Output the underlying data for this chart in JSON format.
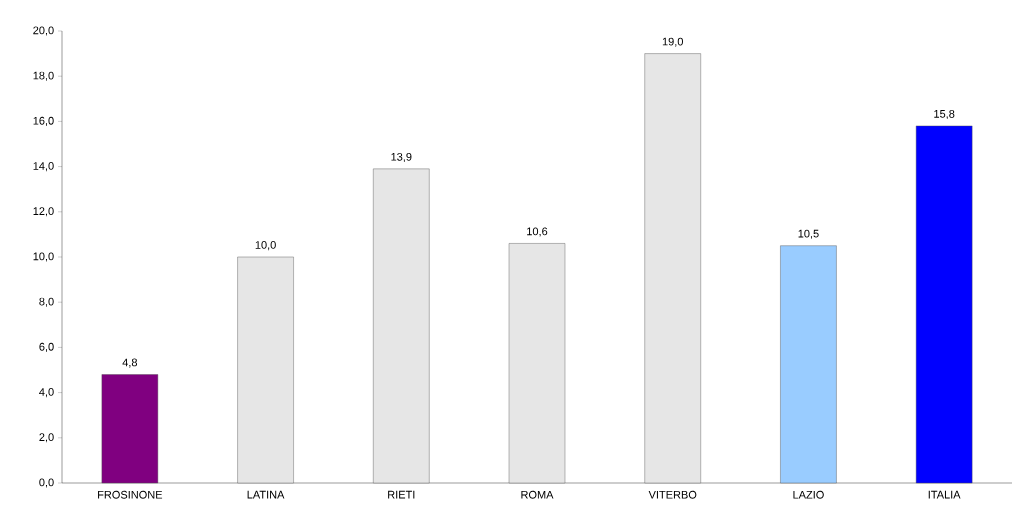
{
  "chart_data": {
    "type": "bar",
    "categories": [
      "FROSINONE",
      "LATINA",
      "RIETI",
      "ROMA",
      "VITERBO",
      "LAZIO",
      "ITALIA"
    ],
    "values": [
      4.8,
      10.0,
      13.9,
      10.6,
      19.0,
      10.5,
      15.8
    ],
    "value_labels": [
      "4,8",
      "10,0",
      "13,9",
      "10,6",
      "19,0",
      "10,5",
      "15,8"
    ],
    "colors": [
      "#800080",
      "#e6e6e6",
      "#e6e6e6",
      "#e6e6e6",
      "#e6e6e6",
      "#99ccff",
      "#0000ff"
    ],
    "ylim": [
      0,
      20
    ],
    "yticks": [
      {
        "value": 0,
        "label": "0,0"
      },
      {
        "value": 2,
        "label": "2,0"
      },
      {
        "value": 4,
        "label": "4,0"
      },
      {
        "value": 6,
        "label": "6,0"
      },
      {
        "value": 8,
        "label": "8,0"
      },
      {
        "value": 10,
        "label": "10,0"
      },
      {
        "value": 12,
        "label": "12,0"
      },
      {
        "value": 14,
        "label": "14,0"
      },
      {
        "value": 16,
        "label": "16,0"
      },
      {
        "value": 18,
        "label": "18,0"
      },
      {
        "value": 20,
        "label": "20,0"
      }
    ],
    "grid": false
  }
}
